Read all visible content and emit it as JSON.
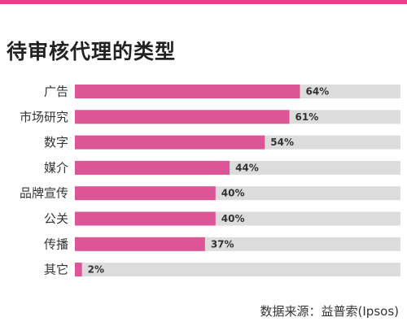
{
  "chart_data": {
    "type": "bar",
    "orientation": "horizontal",
    "title": "待审核代理的类型",
    "categories": [
      "广告",
      "市场研究",
      "数字",
      "媒介",
      "品牌宣传",
      "公关",
      "传播",
      "其它"
    ],
    "values": [
      64,
      61,
      54,
      44,
      40,
      40,
      37,
      2
    ],
    "value_labels": [
      "64%",
      "61%",
      "54%",
      "44%",
      "40%",
      "40%",
      "37%",
      "2%"
    ],
    "xlim": [
      0,
      100
    ],
    "grid": false,
    "legend": "none",
    "source": "数据来源：益普索(Ipsos)"
  },
  "colors": {
    "bar": "#dc5596",
    "track": "#dcdcdc",
    "accent_rule": "#e0418c",
    "text": "#333333"
  }
}
